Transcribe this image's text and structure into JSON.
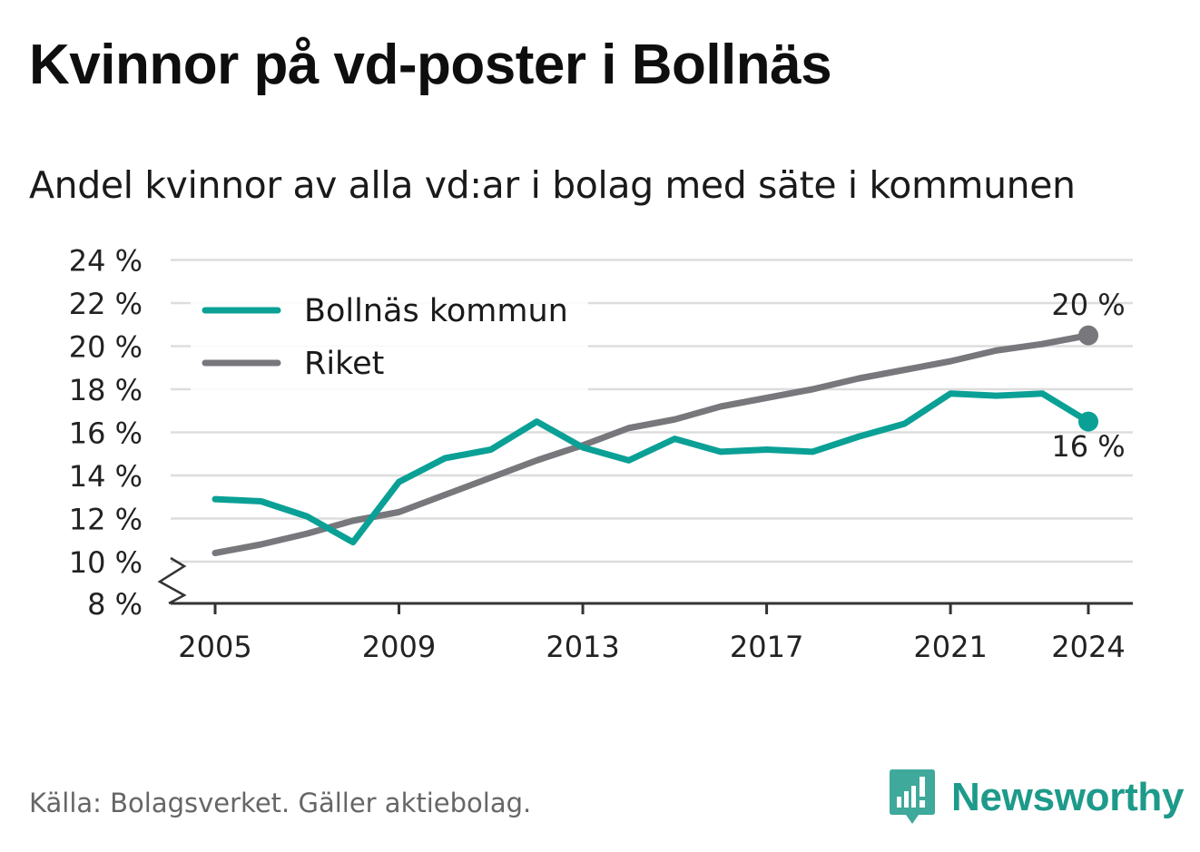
{
  "title": "Kvinnor på vd-poster i Bollnäs",
  "subtitle": "Andel kvinnor av alla vd:ar i bolag med säte i kommunen",
  "source": "Källa: Bolagsverket. Gäller aktiebolag.",
  "brand": "Newsworthy",
  "colors": {
    "bollnas": "#0aa096",
    "riket": "#77777c",
    "grid": "#dddddd",
    "axis": "#333333",
    "brand": "#1d9a8a"
  },
  "chart_data": {
    "type": "line",
    "x": [
      2005,
      2006,
      2007,
      2008,
      2009,
      2010,
      2011,
      2012,
      2013,
      2014,
      2015,
      2016,
      2017,
      2018,
      2019,
      2020,
      2021,
      2022,
      2023,
      2024
    ],
    "series": [
      {
        "name": "Bollnäs kommun",
        "values": [
          12.9,
          12.8,
          12.1,
          10.9,
          13.7,
          14.8,
          15.2,
          16.5,
          15.3,
          14.7,
          15.7,
          15.1,
          15.2,
          15.1,
          15.8,
          16.4,
          17.8,
          17.7,
          17.8,
          16.5
        ]
      },
      {
        "name": "Riket",
        "values": [
          10.4,
          10.8,
          11.3,
          11.9,
          12.3,
          13.1,
          13.9,
          14.7,
          15.4,
          16.2,
          16.6,
          17.2,
          17.6,
          18.0,
          18.5,
          18.9,
          19.3,
          19.8,
          20.1,
          20.5
        ]
      }
    ],
    "x_ticks": [
      "2005",
      "2009",
      "2013",
      "2017",
      "2021",
      "2024"
    ],
    "y_ticks": [
      "8 %",
      "10 %",
      "12 %",
      "14 %",
      "16 %",
      "18 %",
      "20 %",
      "22 %",
      "24 %"
    ],
    "ylim": [
      8,
      24
    ],
    "y_axis_break": true,
    "end_labels": {
      "Bollnäs kommun": "16 %",
      "Riket": "20 %"
    },
    "legend_position": "top-left",
    "grid": true
  }
}
